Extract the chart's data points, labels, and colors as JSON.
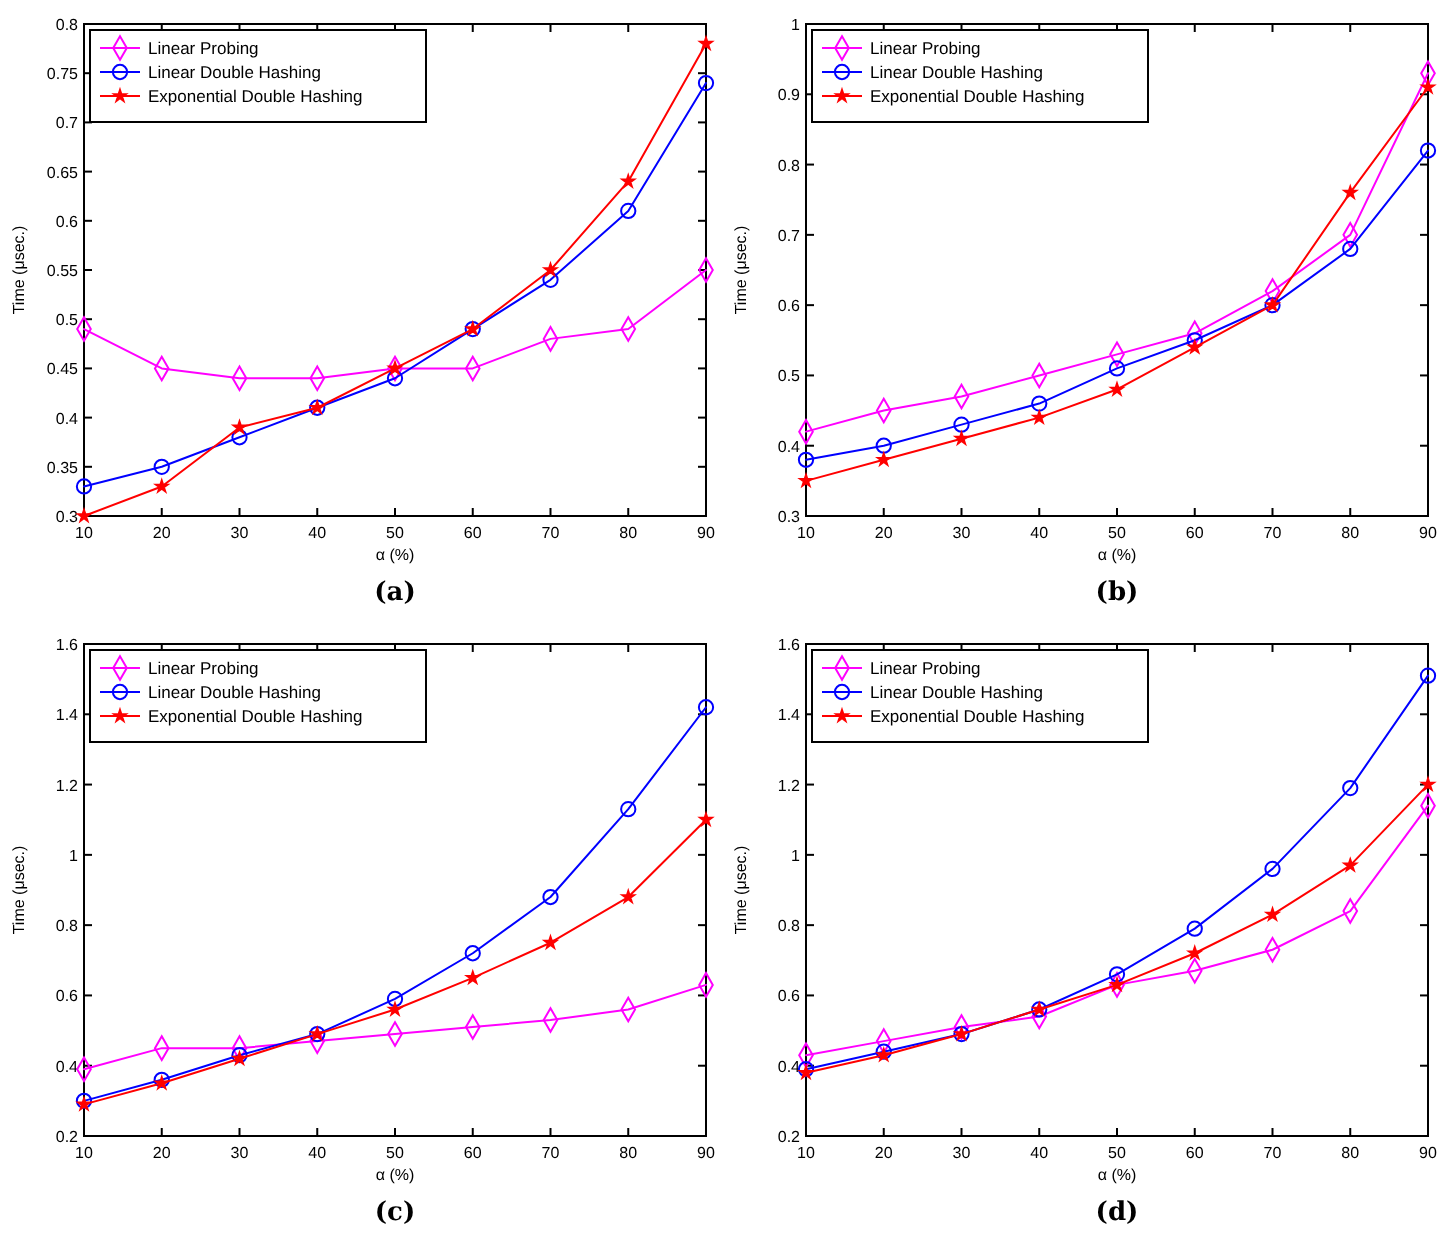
{
  "chart_data": [
    {
      "type": "line",
      "title": "(a)",
      "xlabel": "α (%)",
      "ylabel": "Time (μsec.)",
      "x": [
        10,
        20,
        30,
        40,
        50,
        60,
        70,
        80,
        90
      ],
      "xlim": [
        10,
        90
      ],
      "xticks": [
        10,
        20,
        30,
        40,
        50,
        60,
        70,
        80,
        90
      ],
      "ylim": [
        0.3,
        0.8
      ],
      "yticks": [
        0.3,
        0.35,
        0.4,
        0.45,
        0.5,
        0.55,
        0.6,
        0.65,
        0.7,
        0.75,
        0.8
      ],
      "legend": "top left",
      "grid": false,
      "line_style": "solid",
      "series": [
        {
          "name": "Linear Probing",
          "color": "#ff00ff",
          "marker": "diamond",
          "values": [
            0.49,
            0.45,
            0.44,
            0.44,
            0.45,
            0.45,
            0.48,
            0.49,
            0.55
          ]
        },
        {
          "name": "Linear Double Hashing",
          "color": "#0000ff",
          "marker": "circle",
          "values": [
            0.33,
            0.35,
            0.38,
            0.41,
            0.44,
            0.49,
            0.54,
            0.61,
            0.74
          ]
        },
        {
          "name": "Exponential Double Hashing",
          "color": "#ff0000",
          "marker": "star",
          "values": [
            0.3,
            0.33,
            0.39,
            0.41,
            0.45,
            0.49,
            0.55,
            0.64,
            0.78
          ]
        }
      ]
    },
    {
      "type": "line",
      "title": "(b)",
      "xlabel": "α (%)",
      "ylabel": "Time (μsec.)",
      "x": [
        10,
        20,
        30,
        40,
        50,
        60,
        70,
        80,
        90
      ],
      "xlim": [
        10,
        90
      ],
      "xticks": [
        10,
        20,
        30,
        40,
        50,
        60,
        70,
        80,
        90
      ],
      "ylim": [
        0.3,
        1
      ],
      "yticks": [
        0.3,
        0.4,
        0.5,
        0.6,
        0.7,
        0.8,
        0.9,
        1
      ],
      "legend": "top left",
      "grid": false,
      "line_style": "solid",
      "series": [
        {
          "name": "Linear Probing",
          "color": "#ff00ff",
          "marker": "diamond",
          "values": [
            0.42,
            0.45,
            0.47,
            0.5,
            0.53,
            0.56,
            0.62,
            0.7,
            0.93
          ]
        },
        {
          "name": "Linear Double Hashing",
          "color": "#0000ff",
          "marker": "circle",
          "values": [
            0.38,
            0.4,
            0.43,
            0.46,
            0.51,
            0.55,
            0.6,
            0.68,
            0.82
          ]
        },
        {
          "name": "Exponential Double Hashing",
          "color": "#ff0000",
          "marker": "star",
          "values": [
            0.35,
            0.38,
            0.41,
            0.44,
            0.48,
            0.54,
            0.6,
            0.76,
            0.91
          ]
        }
      ]
    },
    {
      "type": "line",
      "title": "(c)",
      "xlabel": "α (%)",
      "ylabel": "Time (μsec.)",
      "x": [
        10,
        20,
        30,
        40,
        50,
        60,
        70,
        80,
        90
      ],
      "xlim": [
        10,
        90
      ],
      "xticks": [
        10,
        20,
        30,
        40,
        50,
        60,
        70,
        80,
        90
      ],
      "ylim": [
        0.2,
        1.6
      ],
      "yticks": [
        0.2,
        0.4,
        0.6,
        0.8,
        1,
        1.2,
        1.4,
        1.6
      ],
      "legend": "top left",
      "grid": false,
      "line_style": "solid",
      "series": [
        {
          "name": "Linear Probing",
          "color": "#ff00ff",
          "marker": "diamond",
          "values": [
            0.39,
            0.45,
            0.45,
            0.47,
            0.49,
            0.51,
            0.53,
            0.56,
            0.63
          ]
        },
        {
          "name": "Linear Double Hashing",
          "color": "#0000ff",
          "marker": "circle",
          "values": [
            0.3,
            0.36,
            0.43,
            0.49,
            0.59,
            0.72,
            0.88,
            1.13,
            1.42
          ]
        },
        {
          "name": "Exponential Double Hashing",
          "color": "#ff0000",
          "marker": "star",
          "values": [
            0.29,
            0.35,
            0.42,
            0.49,
            0.56,
            0.65,
            0.75,
            0.88,
            1.1
          ]
        }
      ]
    },
    {
      "type": "line",
      "title": "(d)",
      "xlabel": "α (%)",
      "ylabel": "Time (μsec.)",
      "x": [
        10,
        20,
        30,
        40,
        50,
        60,
        70,
        80,
        90
      ],
      "xlim": [
        10,
        90
      ],
      "xticks": [
        10,
        20,
        30,
        40,
        50,
        60,
        70,
        80,
        90
      ],
      "ylim": [
        0.2,
        1.6
      ],
      "yticks": [
        0.2,
        0.4,
        0.6,
        0.8,
        1,
        1.2,
        1.4,
        1.6
      ],
      "legend": "top left",
      "grid": false,
      "line_style": "solid",
      "series": [
        {
          "name": "Linear Probing",
          "color": "#ff00ff",
          "marker": "diamond",
          "values": [
            0.43,
            0.47,
            0.51,
            0.54,
            0.63,
            0.67,
            0.73,
            0.84,
            1.14
          ]
        },
        {
          "name": "Linear Double Hashing",
          "color": "#0000ff",
          "marker": "circle",
          "values": [
            0.39,
            0.44,
            0.49,
            0.56,
            0.66,
            0.79,
            0.96,
            1.19,
            1.51
          ]
        },
        {
          "name": "Exponential Double Hashing",
          "color": "#ff0000",
          "marker": "star",
          "values": [
            0.38,
            0.43,
            0.49,
            0.56,
            0.63,
            0.72,
            0.83,
            0.97,
            1.2
          ]
        }
      ]
    }
  ]
}
